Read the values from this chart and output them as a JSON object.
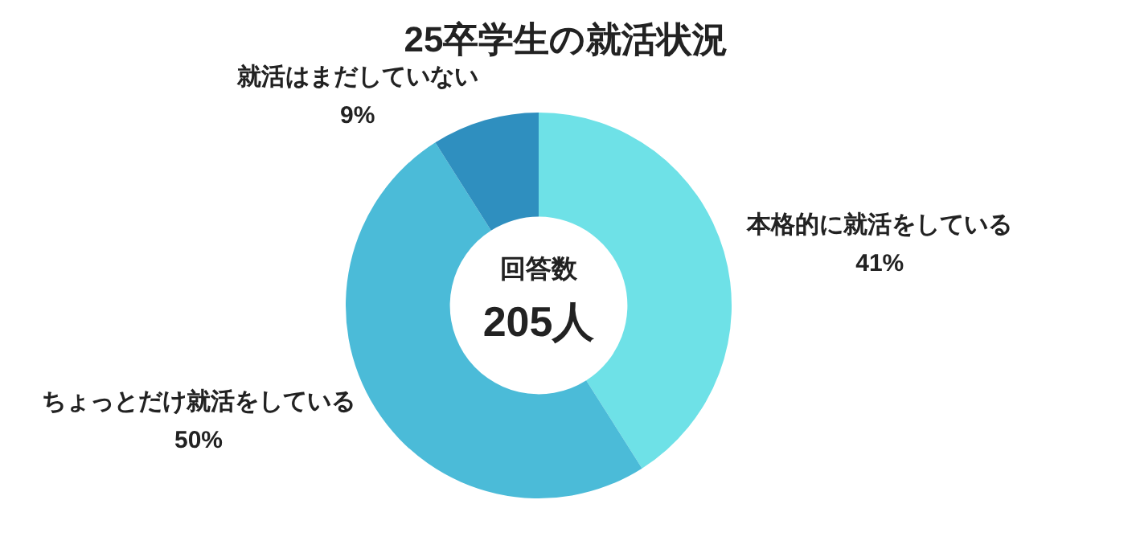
{
  "chart_data": {
    "type": "donut",
    "title": "25卒学生の就活状況",
    "categories": [
      "本格的に就活をしている",
      "ちょっとだけ就活をしている",
      "就活はまだしていない"
    ],
    "values": [
      41,
      50,
      9
    ],
    "colors": [
      "#6ee1e7",
      "#4bbbd8",
      "#2f8fbf"
    ],
    "value_labels": [
      "41%",
      "50%",
      "9%"
    ],
    "annotations": [
      "回答数",
      "205人"
    ]
  }
}
